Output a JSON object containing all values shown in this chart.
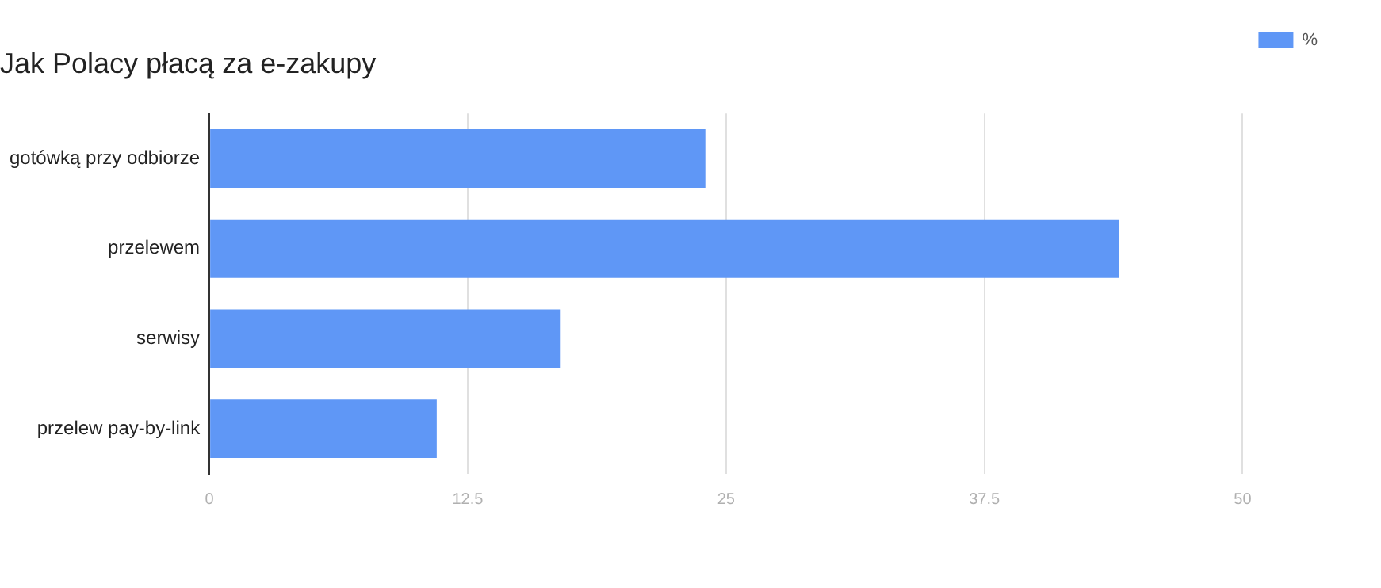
{
  "chart_data": {
    "type": "bar",
    "orientation": "horizontal",
    "title": "Jak Polacy płacą za e-zakupy",
    "categories": [
      "gotówką przy odbiorze",
      "przelewem",
      "serwisy",
      "przelew pay-by-link"
    ],
    "series": [
      {
        "name": "%",
        "color": "#5f97f6",
        "values": [
          24,
          44,
          17,
          11
        ]
      }
    ],
    "xlim": [
      0,
      50
    ],
    "xticks": [
      0,
      12.5,
      25,
      37.5,
      50
    ],
    "grid": "x",
    "legend": "top right"
  }
}
